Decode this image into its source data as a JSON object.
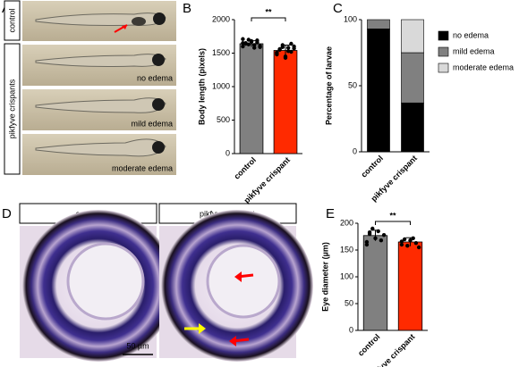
{
  "figure": {
    "panel_labels": [
      "A",
      "B",
      "C",
      "D",
      "E"
    ],
    "panel_a": {
      "control_label": "control",
      "crispant_label": "pikfyve crispants",
      "captions": [
        "no edema",
        "mild edema",
        "moderate edema"
      ]
    },
    "panel_d": {
      "headers": [
        "control",
        "pikfyve crispant"
      ],
      "scale_bar": "50 µm"
    }
  },
  "chart_data": [
    {
      "type": "bar",
      "y_label": "Body length (pixels)",
      "categories": [
        "control",
        "pikfyve crispant"
      ],
      "values": [
        1640,
        1540
      ],
      "errors": [
        45,
        80
      ],
      "colors": [
        "#808080",
        "#ff2a00"
      ],
      "points": [
        [
          1600,
          1650,
          1700,
          1680,
          1620,
          1660,
          1590,
          1710,
          1640,
          1630,
          1670,
          1580,
          1690,
          1610,
          1650
        ],
        [
          1500,
          1560,
          1620,
          1450,
          1580,
          1520,
          1600,
          1480,
          1550,
          1590,
          1430,
          1530,
          1640,
          1570,
          1510
        ]
      ],
      "ylim": [
        0,
        2000
      ],
      "yticks": [
        0,
        500,
        1000,
        1500,
        2000
      ],
      "significance": "**"
    },
    {
      "type": "stacked_bar",
      "y_label": "Percentage of larvae",
      "categories": [
        "control",
        "pikfyve crispant"
      ],
      "series": [
        {
          "name": "no edema",
          "color": "#000000",
          "values": [
            93,
            37
          ]
        },
        {
          "name": "mild edema",
          "color": "#808080",
          "values": [
            7,
            38
          ]
        },
        {
          "name": "moderate edema",
          "color": "#d9d9d9",
          "values": [
            0,
            25
          ]
        }
      ],
      "ylim": [
        0,
        100
      ],
      "yticks": [
        0,
        50,
        100
      ]
    },
    {
      "type": "bar",
      "y_label": "Eye diameter (µm)",
      "categories": [
        "control",
        "pikfyve crispant"
      ],
      "values": [
        177,
        165
      ],
      "errors": [
        10,
        8
      ],
      "colors": [
        "#808080",
        "#ff2a00"
      ],
      "points": [
        [
          165,
          180,
          190,
          172,
          185,
          168,
          178,
          160,
          183
        ],
        [
          160,
          170,
          158,
          168,
          172,
          163,
          155,
          166
        ]
      ],
      "ylim": [
        0,
        200
      ],
      "yticks": [
        0,
        50,
        100,
        150,
        200
      ],
      "significance": "**"
    }
  ]
}
